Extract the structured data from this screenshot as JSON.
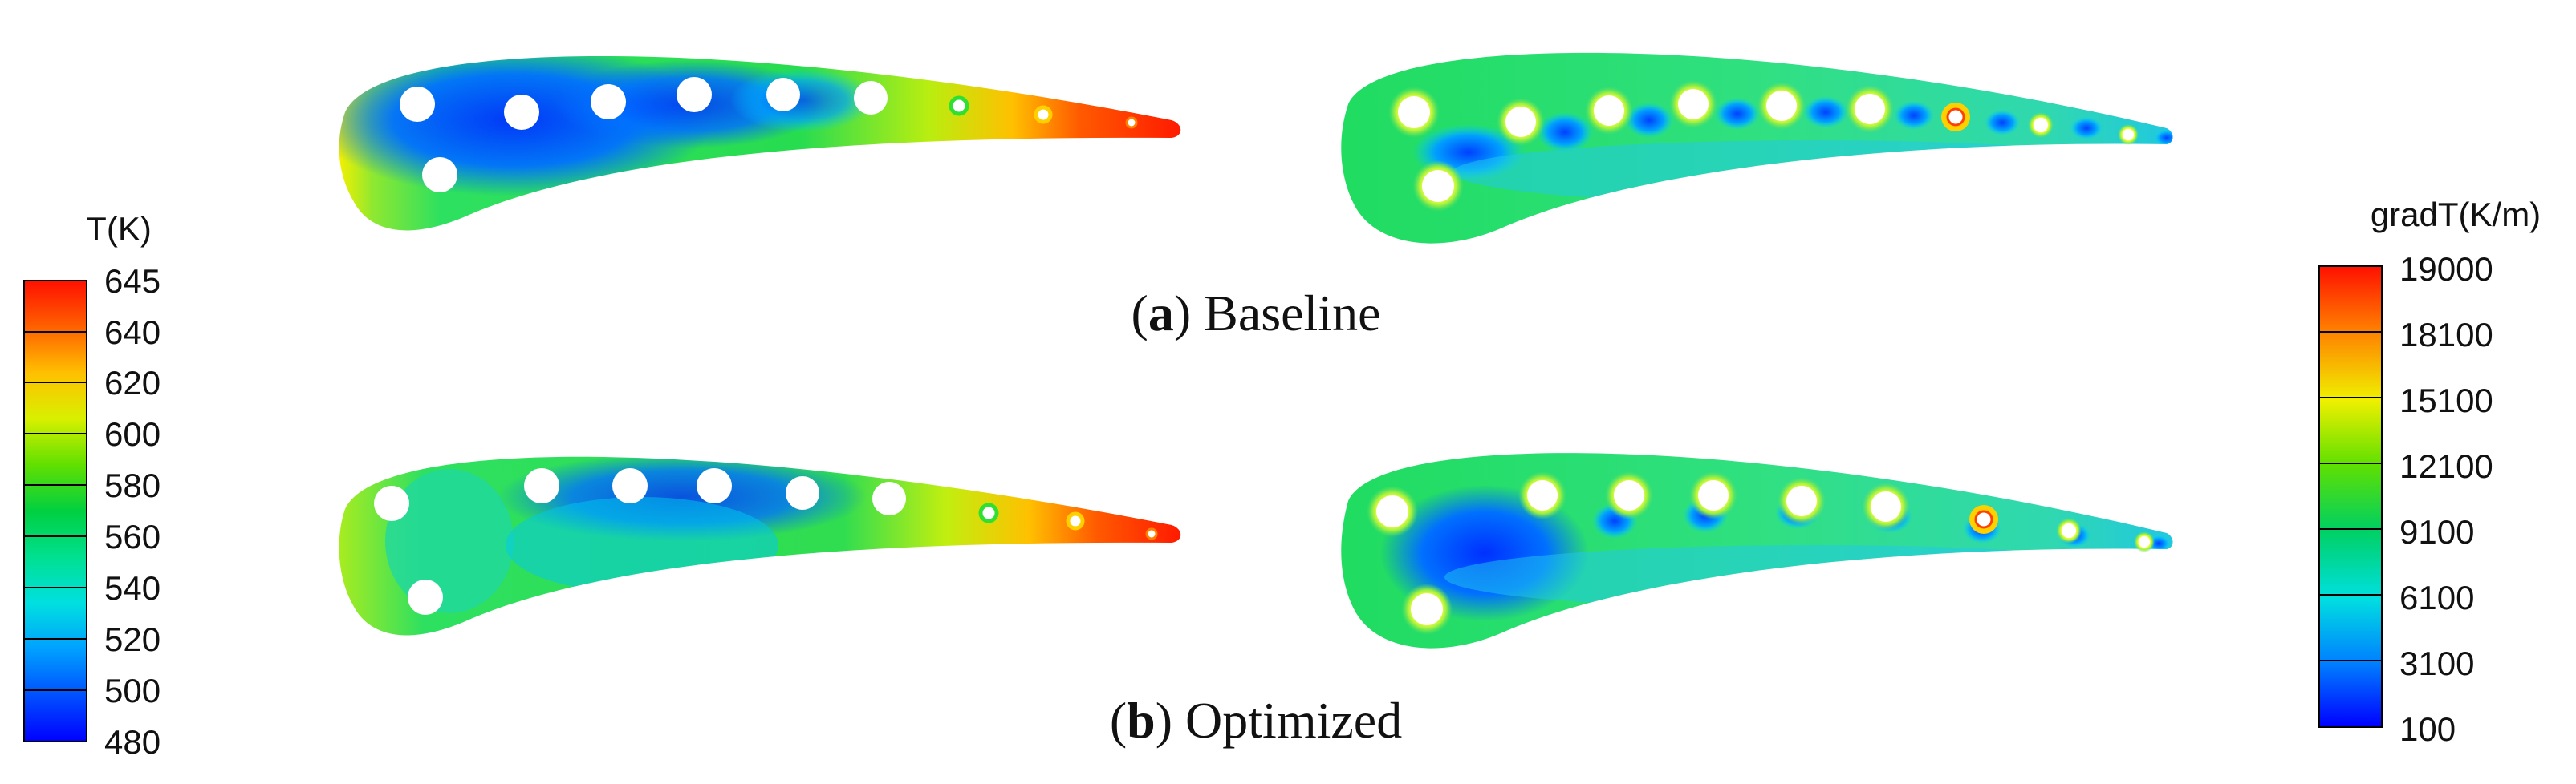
{
  "legend_left": {
    "title": "T(K)",
    "ticks": [
      "645",
      "640",
      "620",
      "600",
      "580",
      "560",
      "540",
      "520",
      "500",
      "480"
    ]
  },
  "legend_right": {
    "title": "gradT(K/m)",
    "ticks": [
      "19000",
      "18100",
      "15100",
      "12100",
      "9100",
      "6100",
      "3100",
      "100"
    ]
  },
  "captions": {
    "a_label": "a",
    "a_text": " Baseline",
    "b_label": "b",
    "b_text": " Optimized"
  },
  "colors": {
    "colormap": [
      "#0000ff",
      "#0060ff",
      "#00c0ff",
      "#00e0c0",
      "#00e070",
      "#30e030",
      "#b0f000",
      "#f0f000",
      "#ffc000",
      "#ff7000",
      "#ff2000"
    ],
    "hole": "#ffffff"
  }
}
